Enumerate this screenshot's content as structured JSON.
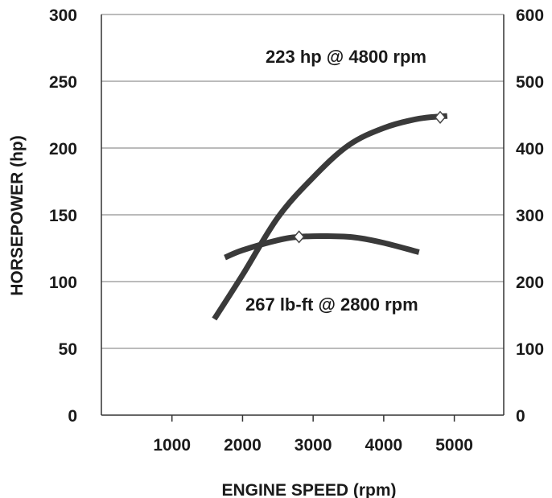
{
  "chart_data": {
    "type": "line",
    "xlabel": "ENGINE SPEED (rpm)",
    "ylabel": "HORSEPOWER (hp)",
    "ylabel_right": "",
    "x_ticks": [
      "1000",
      "2000",
      "3000",
      "4000",
      "5000"
    ],
    "y_ticks_left": [
      "0",
      "50",
      "100",
      "150",
      "200",
      "250",
      "300"
    ],
    "y_ticks_right": [
      "0",
      "100",
      "200",
      "300",
      "400",
      "500",
      "600"
    ],
    "xlim": [
      0,
      5700
    ],
    "ylim_left": [
      0,
      300
    ],
    "ylim_right": [
      0,
      600
    ],
    "grid": "horizontal",
    "series": [
      {
        "axis": "left",
        "color": "#3a3a3a",
        "x": [
          1600,
          2000,
          2500,
          3000,
          3500,
          4000,
          4500,
          4900
        ],
        "y": [
          72,
          105,
          148,
          178,
          202,
          215,
          222,
          224
        ],
        "marker": {
          "x": 4800,
          "y": 223
        }
      },
      {
        "axis": "right",
        "color": "#3a3a3a",
        "x": [
          1750,
          2000,
          2500,
          2800,
          3200,
          3600,
          4000,
          4500
        ],
        "y": [
          236,
          247,
          262,
          267,
          268,
          266,
          258,
          244
        ],
        "marker": {
          "x": 2800,
          "y": 267
        }
      }
    ],
    "annotations": [
      "223 hp @ 4800 rpm",
      "267 lb-ft @ 2800 rpm"
    ]
  }
}
